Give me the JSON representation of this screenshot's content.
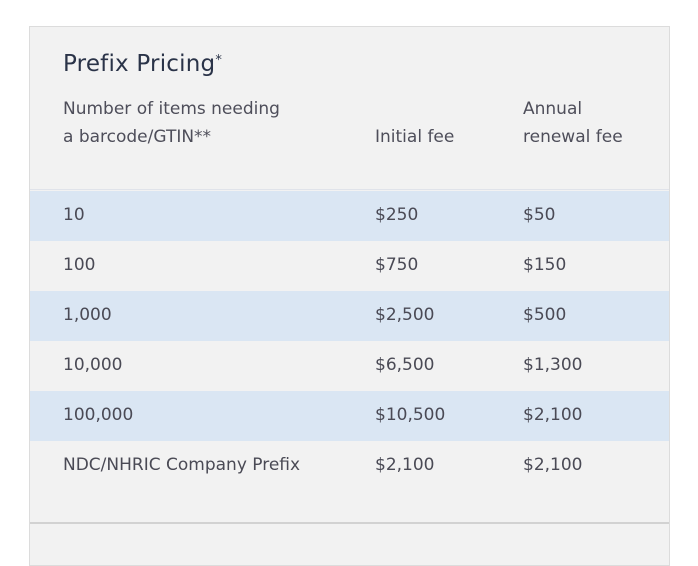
{
  "title": "Prefix Pricing",
  "title_mark": "*",
  "columns": {
    "items": "Number of items needing a barcode/GTIN**",
    "initial": "Initial fee",
    "annual": "Annual renewal fee"
  },
  "rows": [
    {
      "items": "10",
      "initial": "$250",
      "annual": "$50"
    },
    {
      "items": "100",
      "initial": "$750",
      "annual": "$150"
    },
    {
      "items": "1,000",
      "initial": "$2,500",
      "annual": "$500"
    },
    {
      "items": "10,000",
      "initial": "$6,500",
      "annual": "$1,300"
    },
    {
      "items": "100,000",
      "initial": "$10,500",
      "annual": "$2,100"
    },
    {
      "items": "NDC/NHRIC Company Prefix",
      "initial": "$2,100",
      "annual": "$2,100"
    }
  ],
  "colors": {
    "card_background": "#f2f2f2",
    "shaded_row": "#dae6f3",
    "title": "#2a3348",
    "text": "#4a4a55"
  }
}
